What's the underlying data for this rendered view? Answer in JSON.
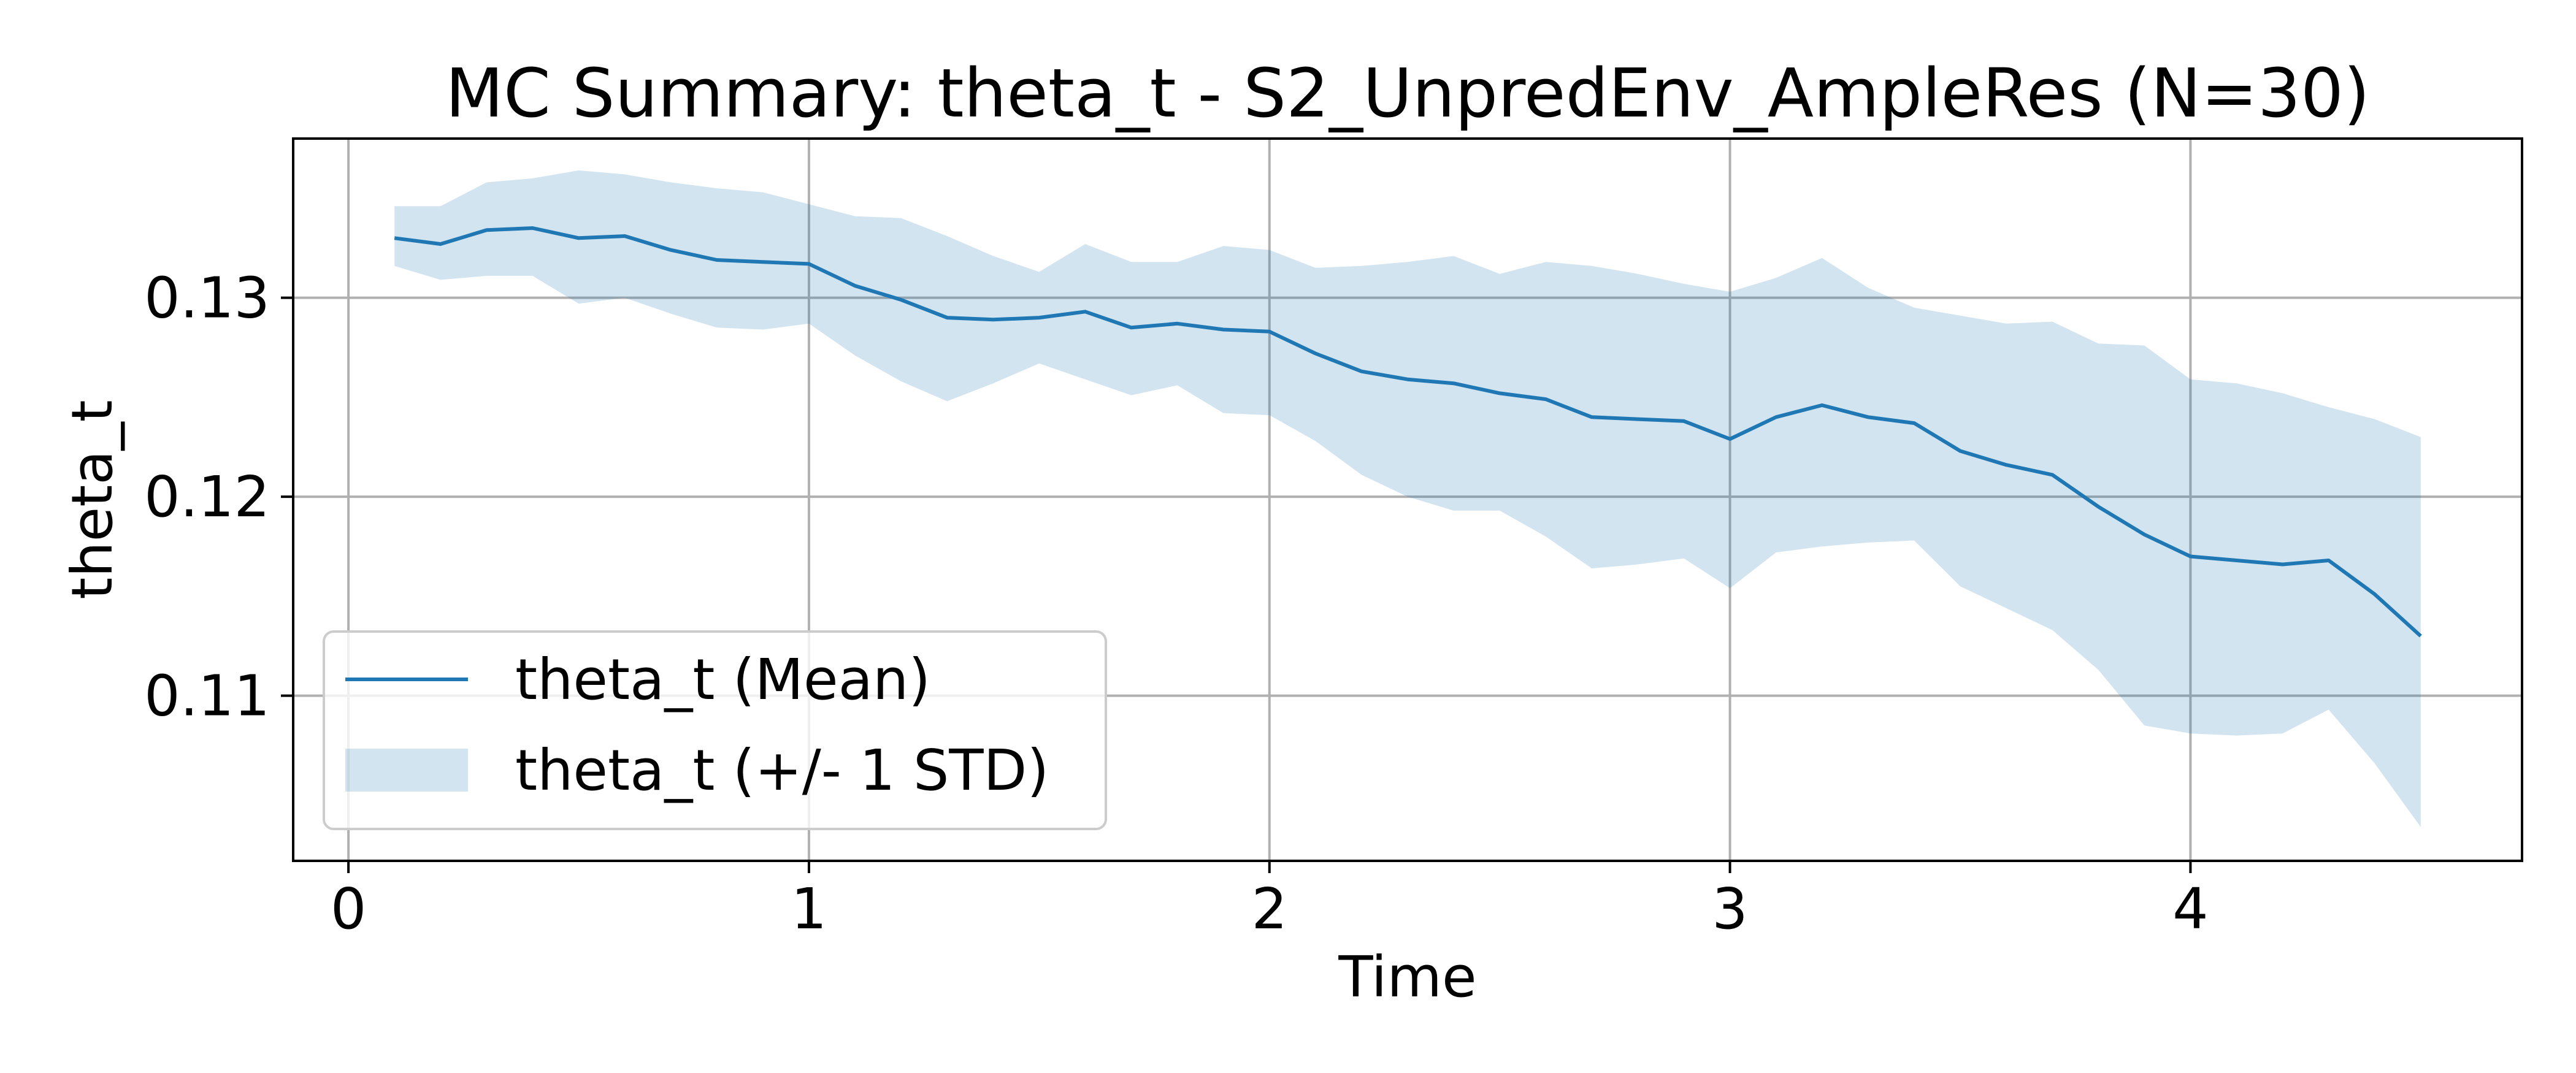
{
  "chart_data": {
    "type": "line",
    "title": "MC Summary: theta_t - S2_UnpredEnv_AmpleRes (N=30)",
    "xlabel": "Time",
    "ylabel": "theta_t",
    "xlim": [
      -0.12,
      4.72
    ],
    "ylim": [
      0.1017,
      0.138
    ],
    "x_ticks": [
      0,
      1,
      2,
      3,
      4
    ],
    "x_tick_labels": [
      "0",
      "1",
      "2",
      "3",
      "4"
    ],
    "y_ticks": [
      0.11,
      0.12,
      0.13
    ],
    "y_tick_labels": [
      "0.11",
      "0.12",
      "0.13"
    ],
    "grid": true,
    "legend_position": "lower-left",
    "x": [
      0.1,
      0.2,
      0.3,
      0.4,
      0.5,
      0.6,
      0.7,
      0.8,
      0.9,
      1.0,
      1.1,
      1.2,
      1.3,
      1.4,
      1.5,
      1.6,
      1.7,
      1.8,
      1.9,
      2.0,
      2.1,
      2.2,
      2.3,
      2.4,
      2.5,
      2.6,
      2.7,
      2.8,
      2.9,
      3.0,
      3.1,
      3.2,
      3.3,
      3.4,
      3.5,
      3.6,
      3.7,
      3.8,
      3.9,
      4.0,
      4.1,
      4.2,
      4.3,
      4.4,
      4.5
    ],
    "series": [
      {
        "name": "theta_t (Mean)",
        "kind": "line",
        "color": "#1f77b4",
        "values": [
          0.133,
          0.1327,
          0.1334,
          0.1335,
          0.133,
          0.1331,
          0.1324,
          0.1319,
          0.1318,
          0.1317,
          0.1306,
          0.1299,
          0.129,
          0.1289,
          0.129,
          0.1293,
          0.1285,
          0.1287,
          0.1284,
          0.1283,
          0.1272,
          0.1263,
          0.1259,
          0.1257,
          0.1252,
          0.1249,
          0.124,
          0.1239,
          0.1238,
          0.1229,
          0.124,
          0.1246,
          0.124,
          0.1237,
          0.1223,
          0.1216,
          0.1211,
          0.1195,
          0.1181,
          0.117,
          0.1168,
          0.1166,
          0.1168,
          0.1151,
          0.113
        ]
      },
      {
        "name": "theta_t (+/- 1 STD)",
        "kind": "band",
        "color": "#1f77b4",
        "opacity": 0.2,
        "upper": [
          0.1346,
          0.1346,
          0.1358,
          0.136,
          0.1364,
          0.1362,
          0.1358,
          0.1355,
          0.1353,
          0.1347,
          0.1341,
          0.134,
          0.1331,
          0.1321,
          0.1313,
          0.1327,
          0.1318,
          0.1318,
          0.1326,
          0.1324,
          0.1315,
          0.1316,
          0.1318,
          0.1321,
          0.1312,
          0.1318,
          0.1316,
          0.1312,
          0.1307,
          0.1303,
          0.131,
          0.132,
          0.1305,
          0.1295,
          0.1291,
          0.1287,
          0.1288,
          0.1277,
          0.1276,
          0.1259,
          0.1257,
          0.1252,
          0.1245,
          0.1239,
          0.123
        ],
        "lower": [
          0.1316,
          0.1309,
          0.1311,
          0.1311,
          0.1297,
          0.13,
          0.1292,
          0.1285,
          0.1284,
          0.1287,
          0.1271,
          0.1258,
          0.1248,
          0.1257,
          0.1267,
          0.1259,
          0.1251,
          0.1256,
          0.1242,
          0.1241,
          0.1228,
          0.1211,
          0.12,
          0.1193,
          0.1193,
          0.118,
          0.1164,
          0.1166,
          0.1169,
          0.1154,
          0.1172,
          0.1175,
          0.1177,
          0.1178,
          0.1155,
          0.1144,
          0.1133,
          0.1113,
          0.1085,
          0.1081,
          0.108,
          0.1081,
          0.1093,
          0.1066,
          0.1034
        ]
      }
    ]
  }
}
